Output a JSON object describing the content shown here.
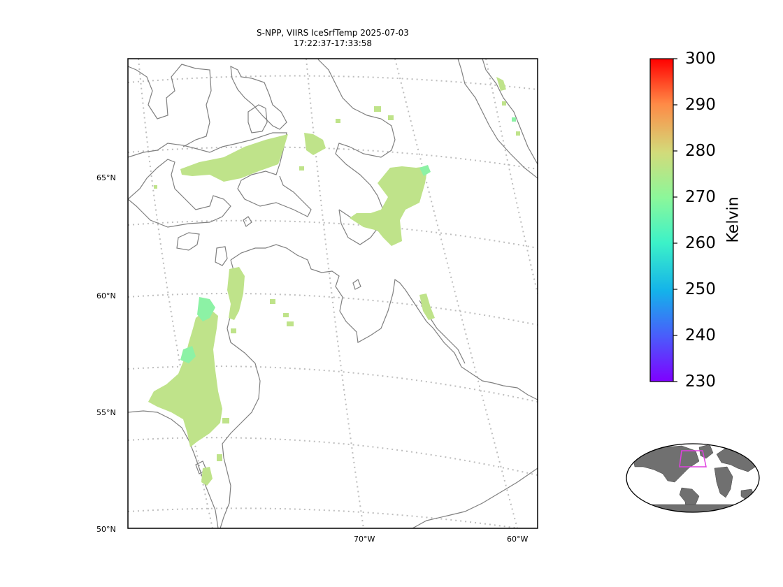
{
  "title": {
    "line1": "S-NPP, VIIRS IceSrfTemp 2025-07-03",
    "line2": "17:22:37-17:33:58"
  },
  "axes": {
    "lat_labels": [
      "65°N",
      "60°N",
      "55°N",
      "50°N"
    ],
    "lon_labels": [
      "70°W",
      "60°W"
    ]
  },
  "colorbar": {
    "label": "Kelvin",
    "min": 230,
    "max": 300,
    "ticks": [
      "300",
      "290",
      "280",
      "270",
      "260",
      "250",
      "240",
      "230"
    ],
    "colormap": "rainbow"
  },
  "colors": {
    "coast": "#808080",
    "grid": "#bdbdbd",
    "data_main": "#bfe38a",
    "data_cool": "#8cf2a5",
    "inset_land": "#707070",
    "inset_box": "#e040e0"
  }
}
